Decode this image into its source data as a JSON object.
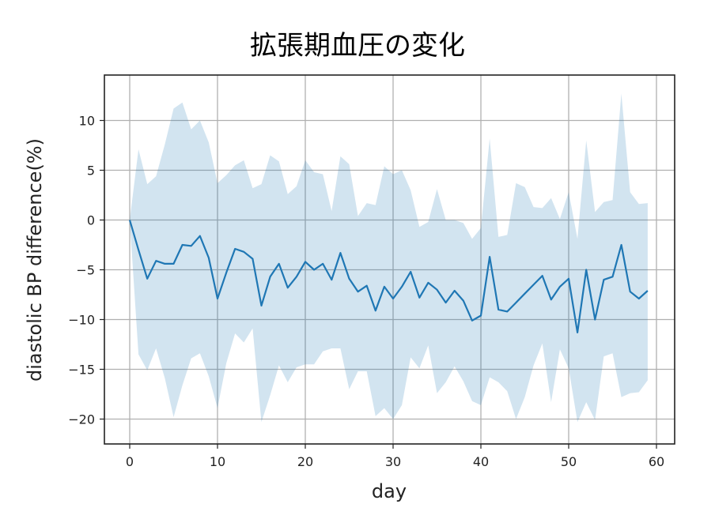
{
  "chart_data": {
    "type": "line",
    "title": "拡張期血圧の変化",
    "xlabel": "day",
    "ylabel": "diastolic BP difference(%)",
    "xlim": [
      -3,
      62
    ],
    "ylim": [
      -22.5,
      14.8
    ],
    "xticks": [
      0,
      10,
      20,
      30,
      40,
      50,
      60
    ],
    "yticks": [
      10,
      5,
      0,
      -5,
      -10,
      -15,
      -20
    ],
    "xtick_labels": [
      "0",
      "10",
      "20",
      "30",
      "40",
      "50",
      "60"
    ],
    "ytick_labels": [
      "10",
      "5",
      "0",
      "−5",
      "−10",
      "−15",
      "−20"
    ],
    "grid": true,
    "legend": null,
    "colors": {
      "line": "#1f77b4",
      "band": "#1f77b4",
      "band_alpha": 0.2,
      "grid": "#b0b0b0"
    },
    "x": [
      0,
      1,
      2,
      3,
      4,
      5,
      6,
      7,
      8,
      9,
      10,
      11,
      12,
      13,
      14,
      15,
      16,
      17,
      18,
      19,
      20,
      21,
      22,
      23,
      24,
      25,
      26,
      27,
      28,
      29,
      30,
      31,
      32,
      33,
      34,
      35,
      36,
      37,
      38,
      39,
      40,
      41,
      42,
      43,
      44,
      45,
      46,
      47,
      48,
      49,
      50,
      51,
      52,
      53,
      54,
      55,
      56,
      57,
      58,
      59
    ],
    "series": [
      {
        "name": "mean",
        "values": [
          0,
          -3.0,
          -5.9,
          -4.1,
          -4.4,
          -4.4,
          -2.5,
          -2.6,
          -1.6,
          -3.8,
          -7.9,
          -5.3,
          -2.9,
          -3.2,
          -3.9,
          -8.6,
          -5.7,
          -4.4,
          -6.8,
          -5.7,
          -4.2,
          -5.0,
          -4.4,
          -6.0,
          -3.3,
          -5.9,
          -7.2,
          -6.6,
          -9.1,
          -6.7,
          -7.9,
          -6.7,
          -5.2,
          -7.8,
          -6.3,
          -7.0,
          -8.3,
          -7.1,
          -8.1,
          -10.1,
          -9.6,
          -3.7,
          -9.0,
          -9.2,
          -8.3,
          -7.4,
          -6.5,
          -5.6,
          -8.0,
          -6.7,
          -5.9,
          -11.3,
          -5.0,
          -10.0,
          -6.0,
          -5.7,
          -2.5,
          -7.2,
          -7.9,
          -7.1
        ]
      },
      {
        "name": "upper",
        "values": [
          0,
          7.1,
          3.6,
          4.4,
          7.6,
          11.2,
          11.8,
          9.1,
          10.0,
          7.8,
          3.7,
          4.5,
          5.5,
          6.0,
          3.2,
          3.6,
          6.5,
          5.9,
          2.6,
          3.4,
          6.0,
          4.8,
          4.6,
          0.9,
          6.4,
          5.6,
          0.4,
          1.7,
          1.5,
          5.4,
          4.6,
          5.0,
          3.0,
          -0.7,
          -0.2,
          3.1,
          0.0,
          0.0,
          -0.3,
          -1.9,
          -0.8,
          8.2,
          -1.7,
          -1.5,
          3.7,
          3.3,
          1.3,
          1.2,
          2.2,
          0.1,
          2.8,
          -1.9,
          8.0,
          0.8,
          1.8,
          2.0,
          12.7,
          2.8,
          1.6,
          1.7
        ]
      },
      {
        "name": "lower",
        "values": [
          0,
          -13.5,
          -15.1,
          -12.9,
          -15.9,
          -19.8,
          -16.6,
          -13.9,
          -13.4,
          -15.7,
          -18.9,
          -14.4,
          -11.4,
          -12.3,
          -10.9,
          -20.3,
          -17.6,
          -14.6,
          -16.3,
          -14.8,
          -14.5,
          -14.5,
          -13.2,
          -12.9,
          -12.9,
          -17.0,
          -15.2,
          -15.2,
          -19.7,
          -18.9,
          -20.0,
          -18.6,
          -13.8,
          -14.9,
          -12.6,
          -17.4,
          -16.3,
          -14.7,
          -16.2,
          -18.2,
          -18.6,
          -15.8,
          -16.3,
          -17.2,
          -20.0,
          -17.8,
          -14.6,
          -12.4,
          -18.3,
          -13.0,
          -14.9,
          -20.3,
          -18.3,
          -20.1,
          -13.7,
          -13.4,
          -17.8,
          -17.4,
          -17.3,
          -16.1
        ]
      }
    ]
  }
}
